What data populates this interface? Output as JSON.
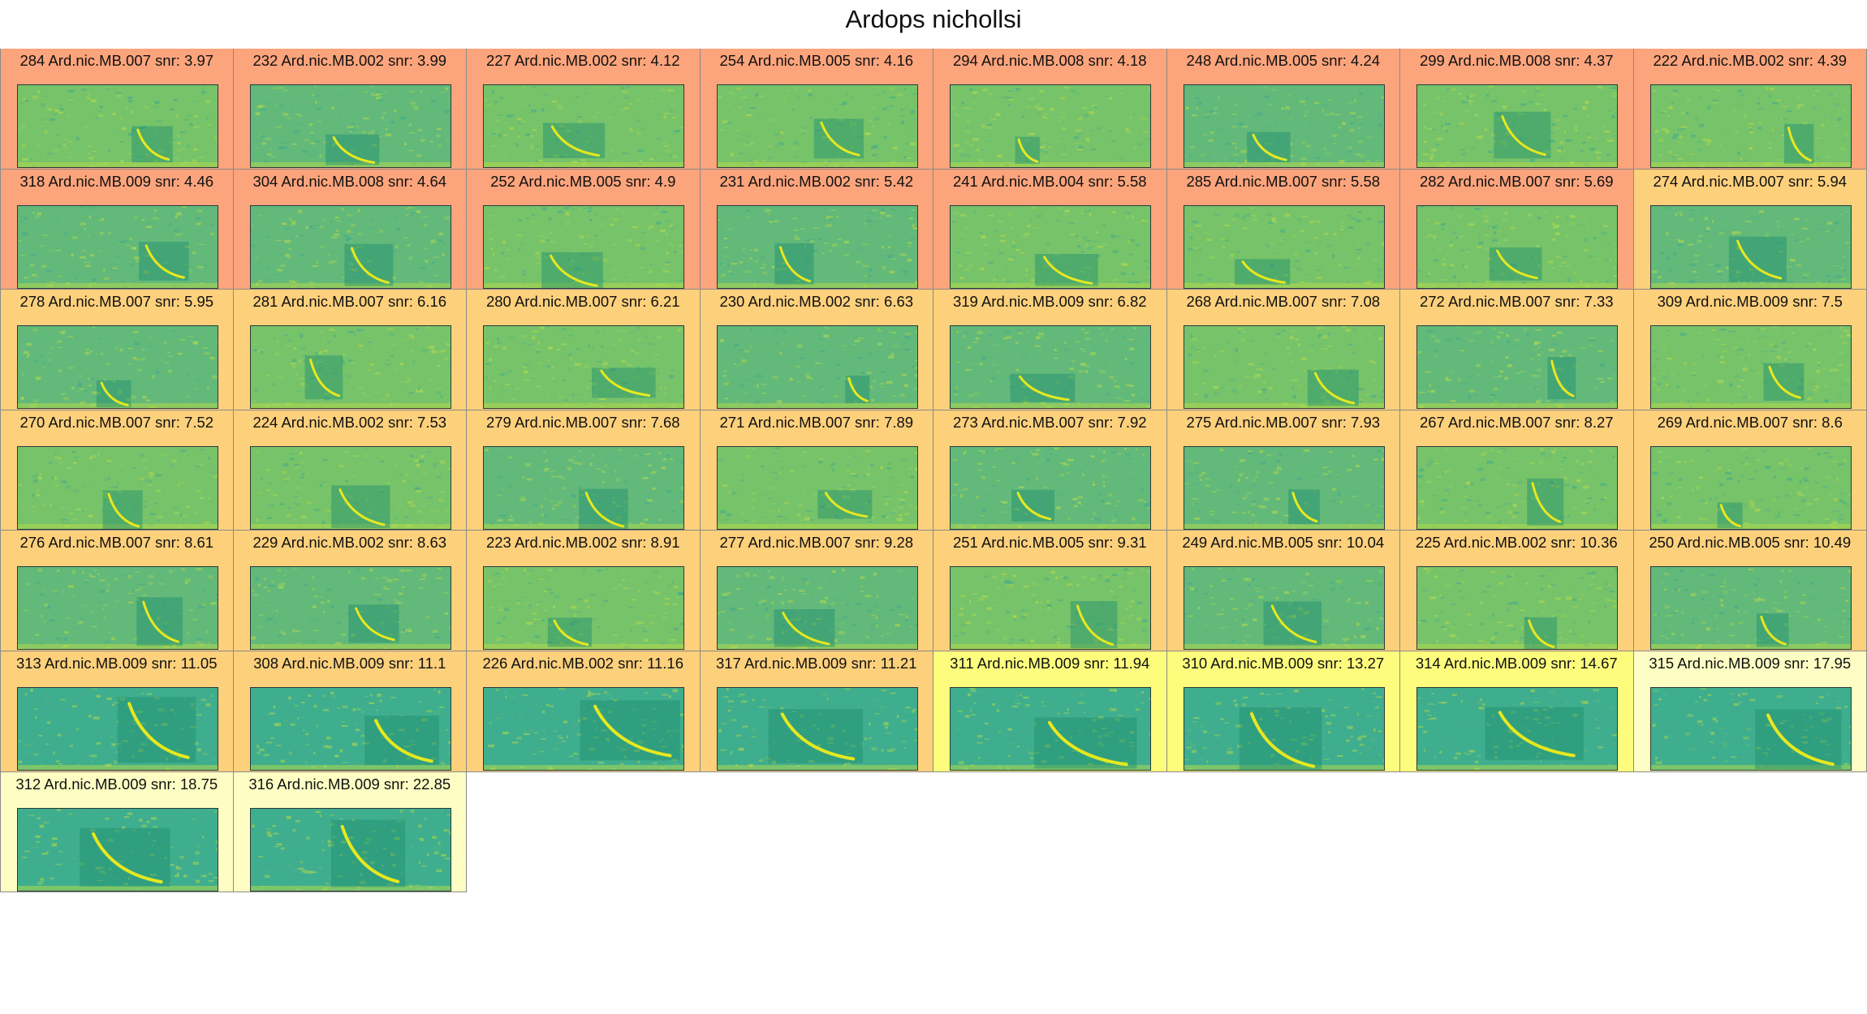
{
  "title": "Ardops nichollsi",
  "colors": {
    "salmon": "#fca47c",
    "orange": "#fdd07c",
    "yellow": "#fdfc7c",
    "pale": "#fefec4"
  },
  "clips": [
    {
      "id": "284",
      "file": "Ard.nic.MB.007",
      "snr": "3.97",
      "band": "salmon"
    },
    {
      "id": "232",
      "file": "Ard.nic.MB.002",
      "snr": "3.99",
      "band": "salmon"
    },
    {
      "id": "227",
      "file": "Ard.nic.MB.002",
      "snr": "4.12",
      "band": "salmon"
    },
    {
      "id": "254",
      "file": "Ard.nic.MB.005",
      "snr": "4.16",
      "band": "salmon"
    },
    {
      "id": "294",
      "file": "Ard.nic.MB.008",
      "snr": "4.18",
      "band": "salmon"
    },
    {
      "id": "248",
      "file": "Ard.nic.MB.005",
      "snr": "4.24",
      "band": "salmon"
    },
    {
      "id": "299",
      "file": "Ard.nic.MB.008",
      "snr": "4.37",
      "band": "salmon"
    },
    {
      "id": "222",
      "file": "Ard.nic.MB.002",
      "snr": "4.39",
      "band": "salmon"
    },
    {
      "id": "318",
      "file": "Ard.nic.MB.009",
      "snr": "4.46",
      "band": "salmon"
    },
    {
      "id": "304",
      "file": "Ard.nic.MB.008",
      "snr": "4.64",
      "band": "salmon"
    },
    {
      "id": "252",
      "file": "Ard.nic.MB.005",
      "snr": "4.9",
      "band": "salmon"
    },
    {
      "id": "231",
      "file": "Ard.nic.MB.002",
      "snr": "5.42",
      "band": "salmon"
    },
    {
      "id": "241",
      "file": "Ard.nic.MB.004",
      "snr": "5.58",
      "band": "salmon"
    },
    {
      "id": "285",
      "file": "Ard.nic.MB.007",
      "snr": "5.58",
      "band": "salmon"
    },
    {
      "id": "282",
      "file": "Ard.nic.MB.007",
      "snr": "5.69",
      "band": "salmon"
    },
    {
      "id": "274",
      "file": "Ard.nic.MB.007",
      "snr": "5.94",
      "band": "orange"
    },
    {
      "id": "278",
      "file": "Ard.nic.MB.007",
      "snr": "5.95",
      "band": "orange"
    },
    {
      "id": "281",
      "file": "Ard.nic.MB.007",
      "snr": "6.16",
      "band": "orange"
    },
    {
      "id": "280",
      "file": "Ard.nic.MB.007",
      "snr": "6.21",
      "band": "orange"
    },
    {
      "id": "230",
      "file": "Ard.nic.MB.002",
      "snr": "6.63",
      "band": "orange"
    },
    {
      "id": "319",
      "file": "Ard.nic.MB.009",
      "snr": "6.82",
      "band": "orange"
    },
    {
      "id": "268",
      "file": "Ard.nic.MB.007",
      "snr": "7.08",
      "band": "orange"
    },
    {
      "id": "272",
      "file": "Ard.nic.MB.007",
      "snr": "7.33",
      "band": "orange"
    },
    {
      "id": "309",
      "file": "Ard.nic.MB.009",
      "snr": "7.5",
      "band": "orange"
    },
    {
      "id": "270",
      "file": "Ard.nic.MB.007",
      "snr": "7.52",
      "band": "orange"
    },
    {
      "id": "224",
      "file": "Ard.nic.MB.002",
      "snr": "7.53",
      "band": "orange"
    },
    {
      "id": "279",
      "file": "Ard.nic.MB.007",
      "snr": "7.68",
      "band": "orange"
    },
    {
      "id": "271",
      "file": "Ard.nic.MB.007",
      "snr": "7.89",
      "band": "orange"
    },
    {
      "id": "273",
      "file": "Ard.nic.MB.007",
      "snr": "7.92",
      "band": "orange"
    },
    {
      "id": "275",
      "file": "Ard.nic.MB.007",
      "snr": "7.93",
      "band": "orange"
    },
    {
      "id": "267",
      "file": "Ard.nic.MB.007",
      "snr": "8.27",
      "band": "orange"
    },
    {
      "id": "269",
      "file": "Ard.nic.MB.007",
      "snr": "8.6",
      "band": "orange"
    },
    {
      "id": "276",
      "file": "Ard.nic.MB.007",
      "snr": "8.61",
      "band": "orange"
    },
    {
      "id": "229",
      "file": "Ard.nic.MB.002",
      "snr": "8.63",
      "band": "orange"
    },
    {
      "id": "223",
      "file": "Ard.nic.MB.002",
      "snr": "8.91",
      "band": "orange"
    },
    {
      "id": "277",
      "file": "Ard.nic.MB.007",
      "snr": "9.28",
      "band": "orange"
    },
    {
      "id": "251",
      "file": "Ard.nic.MB.005",
      "snr": "9.31",
      "band": "orange"
    },
    {
      "id": "249",
      "file": "Ard.nic.MB.005",
      "snr": "10.04",
      "band": "orange"
    },
    {
      "id": "225",
      "file": "Ard.nic.MB.002",
      "snr": "10.36",
      "band": "orange"
    },
    {
      "id": "250",
      "file": "Ard.nic.MB.005",
      "snr": "10.49",
      "band": "orange"
    },
    {
      "id": "313",
      "file": "Ard.nic.MB.009",
      "snr": "11.05",
      "band": "orange"
    },
    {
      "id": "308",
      "file": "Ard.nic.MB.009",
      "snr": "11.1",
      "band": "orange"
    },
    {
      "id": "226",
      "file": "Ard.nic.MB.002",
      "snr": "11.16",
      "band": "orange"
    },
    {
      "id": "317",
      "file": "Ard.nic.MB.009",
      "snr": "11.21",
      "band": "orange"
    },
    {
      "id": "311",
      "file": "Ard.nic.MB.009",
      "snr": "11.94",
      "band": "yellow"
    },
    {
      "id": "310",
      "file": "Ard.nic.MB.009",
      "snr": "13.27",
      "band": "yellow"
    },
    {
      "id": "314",
      "file": "Ard.nic.MB.009",
      "snr": "14.67",
      "band": "yellow"
    },
    {
      "id": "315",
      "file": "Ard.nic.MB.009",
      "snr": "17.95",
      "band": "pale"
    },
    {
      "id": "312",
      "file": "Ard.nic.MB.009",
      "snr": "18.75",
      "band": "pale"
    },
    {
      "id": "316",
      "file": "Ard.nic.MB.009",
      "snr": "22.85",
      "band": "pale"
    }
  ]
}
